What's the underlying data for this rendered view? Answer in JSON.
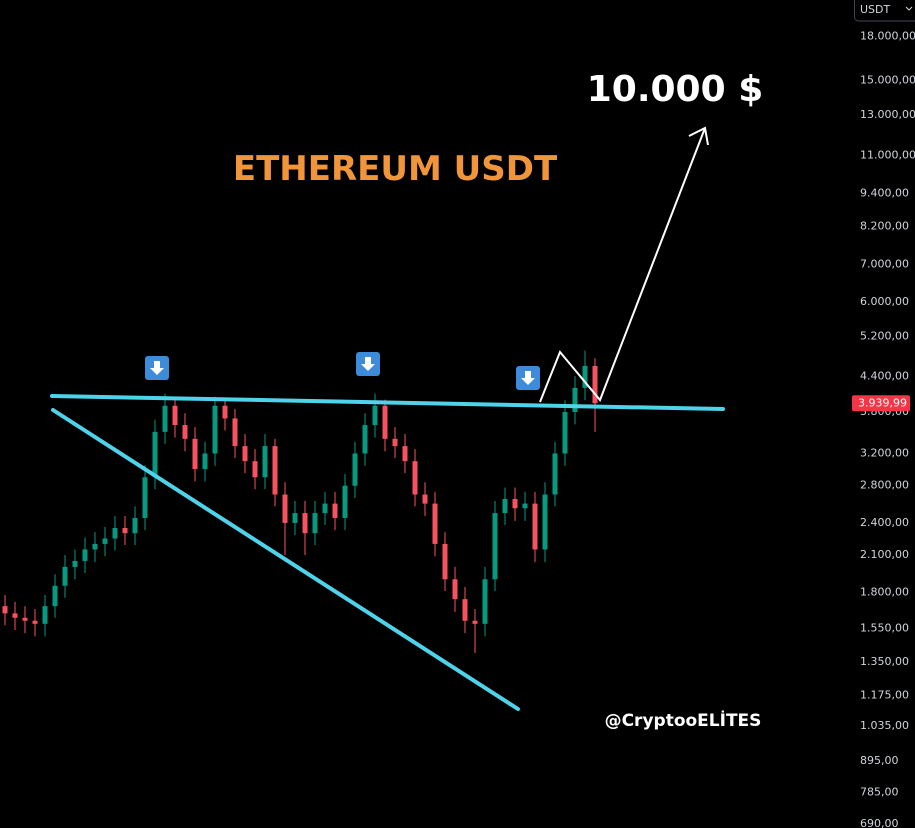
{
  "chart_data": {
    "type": "candlestick",
    "title": "ETHEREUM USDT",
    "annotations": [
      "10.000 $",
      "@CryptooELİTES"
    ],
    "currency": "USDT",
    "log_scale": true,
    "up_color": "#089981",
    "down_color": "#f7525f",
    "categories": [
      null,
      null,
      null,
      null,
      null,
      null,
      null,
      null,
      null,
      null,
      null,
      null,
      null,
      null,
      null,
      null,
      null,
      null,
      null,
      null,
      null,
      null,
      null,
      null,
      null,
      null,
      null,
      null,
      null,
      null,
      null,
      null,
      null,
      null,
      null,
      null,
      null,
      null,
      null,
      null,
      null,
      null,
      null,
      null,
      null,
      null,
      null,
      null,
      null,
      null,
      null,
      null,
      null,
      null,
      null,
      null,
      null,
      null,
      null,
      null
    ],
    "open": [
      1700,
      1650,
      1620,
      1600,
      1580,
      1700,
      1850,
      2000,
      2050,
      2150,
      2200,
      2250,
      2350,
      2300,
      2450,
      2900,
      3500,
      3900,
      3600,
      3400,
      3000,
      3200,
      3900,
      3700,
      3300,
      3100,
      2900,
      3300,
      2700,
      2400,
      2500,
      2300,
      2500,
      2600,
      2450,
      2800,
      3200,
      3600,
      3900,
      3400,
      3300,
      3100,
      2700,
      2600,
      2200,
      1900,
      1750,
      1600,
      1580,
      1900,
      2500,
      2650,
      2550,
      2600,
      2150,
      2700,
      3200,
      3800,
      4200,
      4600
    ],
    "high": [
      1780,
      1730,
      1700,
      1680,
      1780,
      1940,
      2100,
      2150,
      2260,
      2310,
      2360,
      2470,
      2470,
      2570,
      3050,
      3680,
      4100,
      4000,
      3780,
      3570,
      3360,
      4050,
      4000,
      3850,
      3470,
      3260,
      3470,
      3400,
      2840,
      2630,
      2630,
      2630,
      2730,
      2730,
      2940,
      3360,
      3780,
      4100,
      4000,
      3570,
      3470,
      3260,
      2840,
      2730,
      2310,
      2000,
      1840,
      1680,
      2000,
      2630,
      2780,
      2780,
      2730,
      2730,
      2840,
      3360,
      3990,
      4410,
      4900,
      4750
    ],
    "low": [
      1570,
      1540,
      1520,
      1500,
      1500,
      1620,
      1760,
      1900,
      1950,
      2040,
      2090,
      2140,
      2190,
      2190,
      2330,
      2760,
      3330,
      3420,
      3230,
      2850,
      2850,
      3040,
      3520,
      3140,
      2950,
      2760,
      2760,
      2570,
      2100,
      2280,
      2100,
      2190,
      2380,
      2330,
      2330,
      2660,
      3040,
      3420,
      3230,
      3140,
      2950,
      2570,
      2470,
      2090,
      1810,
      1660,
      1520,
      1400,
      1500,
      1810,
      2380,
      2420,
      2420,
      2040,
      2040,
      2570,
      3040,
      3610,
      3990,
      3500
    ],
    "close": [
      1650,
      1620,
      1600,
      1580,
      1700,
      1850,
      2000,
      2050,
      2150,
      2200,
      2250,
      2350,
      2300,
      2450,
      2900,
      3500,
      3900,
      3600,
      3400,
      3000,
      3200,
      3900,
      3700,
      3300,
      3100,
      2900,
      3300,
      2700,
      2400,
      2500,
      2300,
      2500,
      2600,
      2450,
      2800,
      3200,
      3600,
      3900,
      3400,
      3300,
      3100,
      2700,
      2600,
      2200,
      1900,
      1750,
      1600,
      1580,
      1900,
      2500,
      2650,
      2550,
      2600,
      2150,
      2700,
      3200,
      3800,
      4200,
      4600,
      3939.99
    ],
    "last_price": {
      "value": 3939.99,
      "label": "3.939,99"
    },
    "ylim": [
      678,
      20950
    ],
    "yticks": [
      {
        "value": 18000,
        "label": "18.000,00"
      },
      {
        "value": 15000,
        "label": "15.000,00"
      },
      {
        "value": 13000,
        "label": "13.000,00"
      },
      {
        "value": 11000,
        "label": "11.000,00"
      },
      {
        "value": 9400,
        "label": "9.400,00"
      },
      {
        "value": 8200,
        "label": "8.200,00"
      },
      {
        "value": 7000,
        "label": "7.000,00"
      },
      {
        "value": 6000,
        "label": "6.000,00"
      },
      {
        "value": 5200,
        "label": "5.200,00"
      },
      {
        "value": 4400,
        "label": "4.400,00"
      },
      {
        "value": 3800,
        "label": "3.800,00"
      },
      {
        "value": 3200,
        "label": "3.200,00"
      },
      {
        "value": 2800,
        "label": "2.800,00"
      },
      {
        "value": 2400,
        "label": "2.400,00"
      },
      {
        "value": 2100,
        "label": "2.100,00"
      },
      {
        "value": 1800,
        "label": "1.800,00"
      },
      {
        "value": 1550,
        "label": "1.550,00"
      },
      {
        "value": 1350,
        "label": "1.350,00"
      },
      {
        "value": 1175,
        "label": "1.175,00"
      },
      {
        "value": 1035,
        "label": "1.035,00"
      },
      {
        "value": 895,
        "label": "895,00"
      },
      {
        "value": 785,
        "label": "785,00"
      },
      {
        "value": 690,
        "label": "690,00"
      }
    ]
  }
}
